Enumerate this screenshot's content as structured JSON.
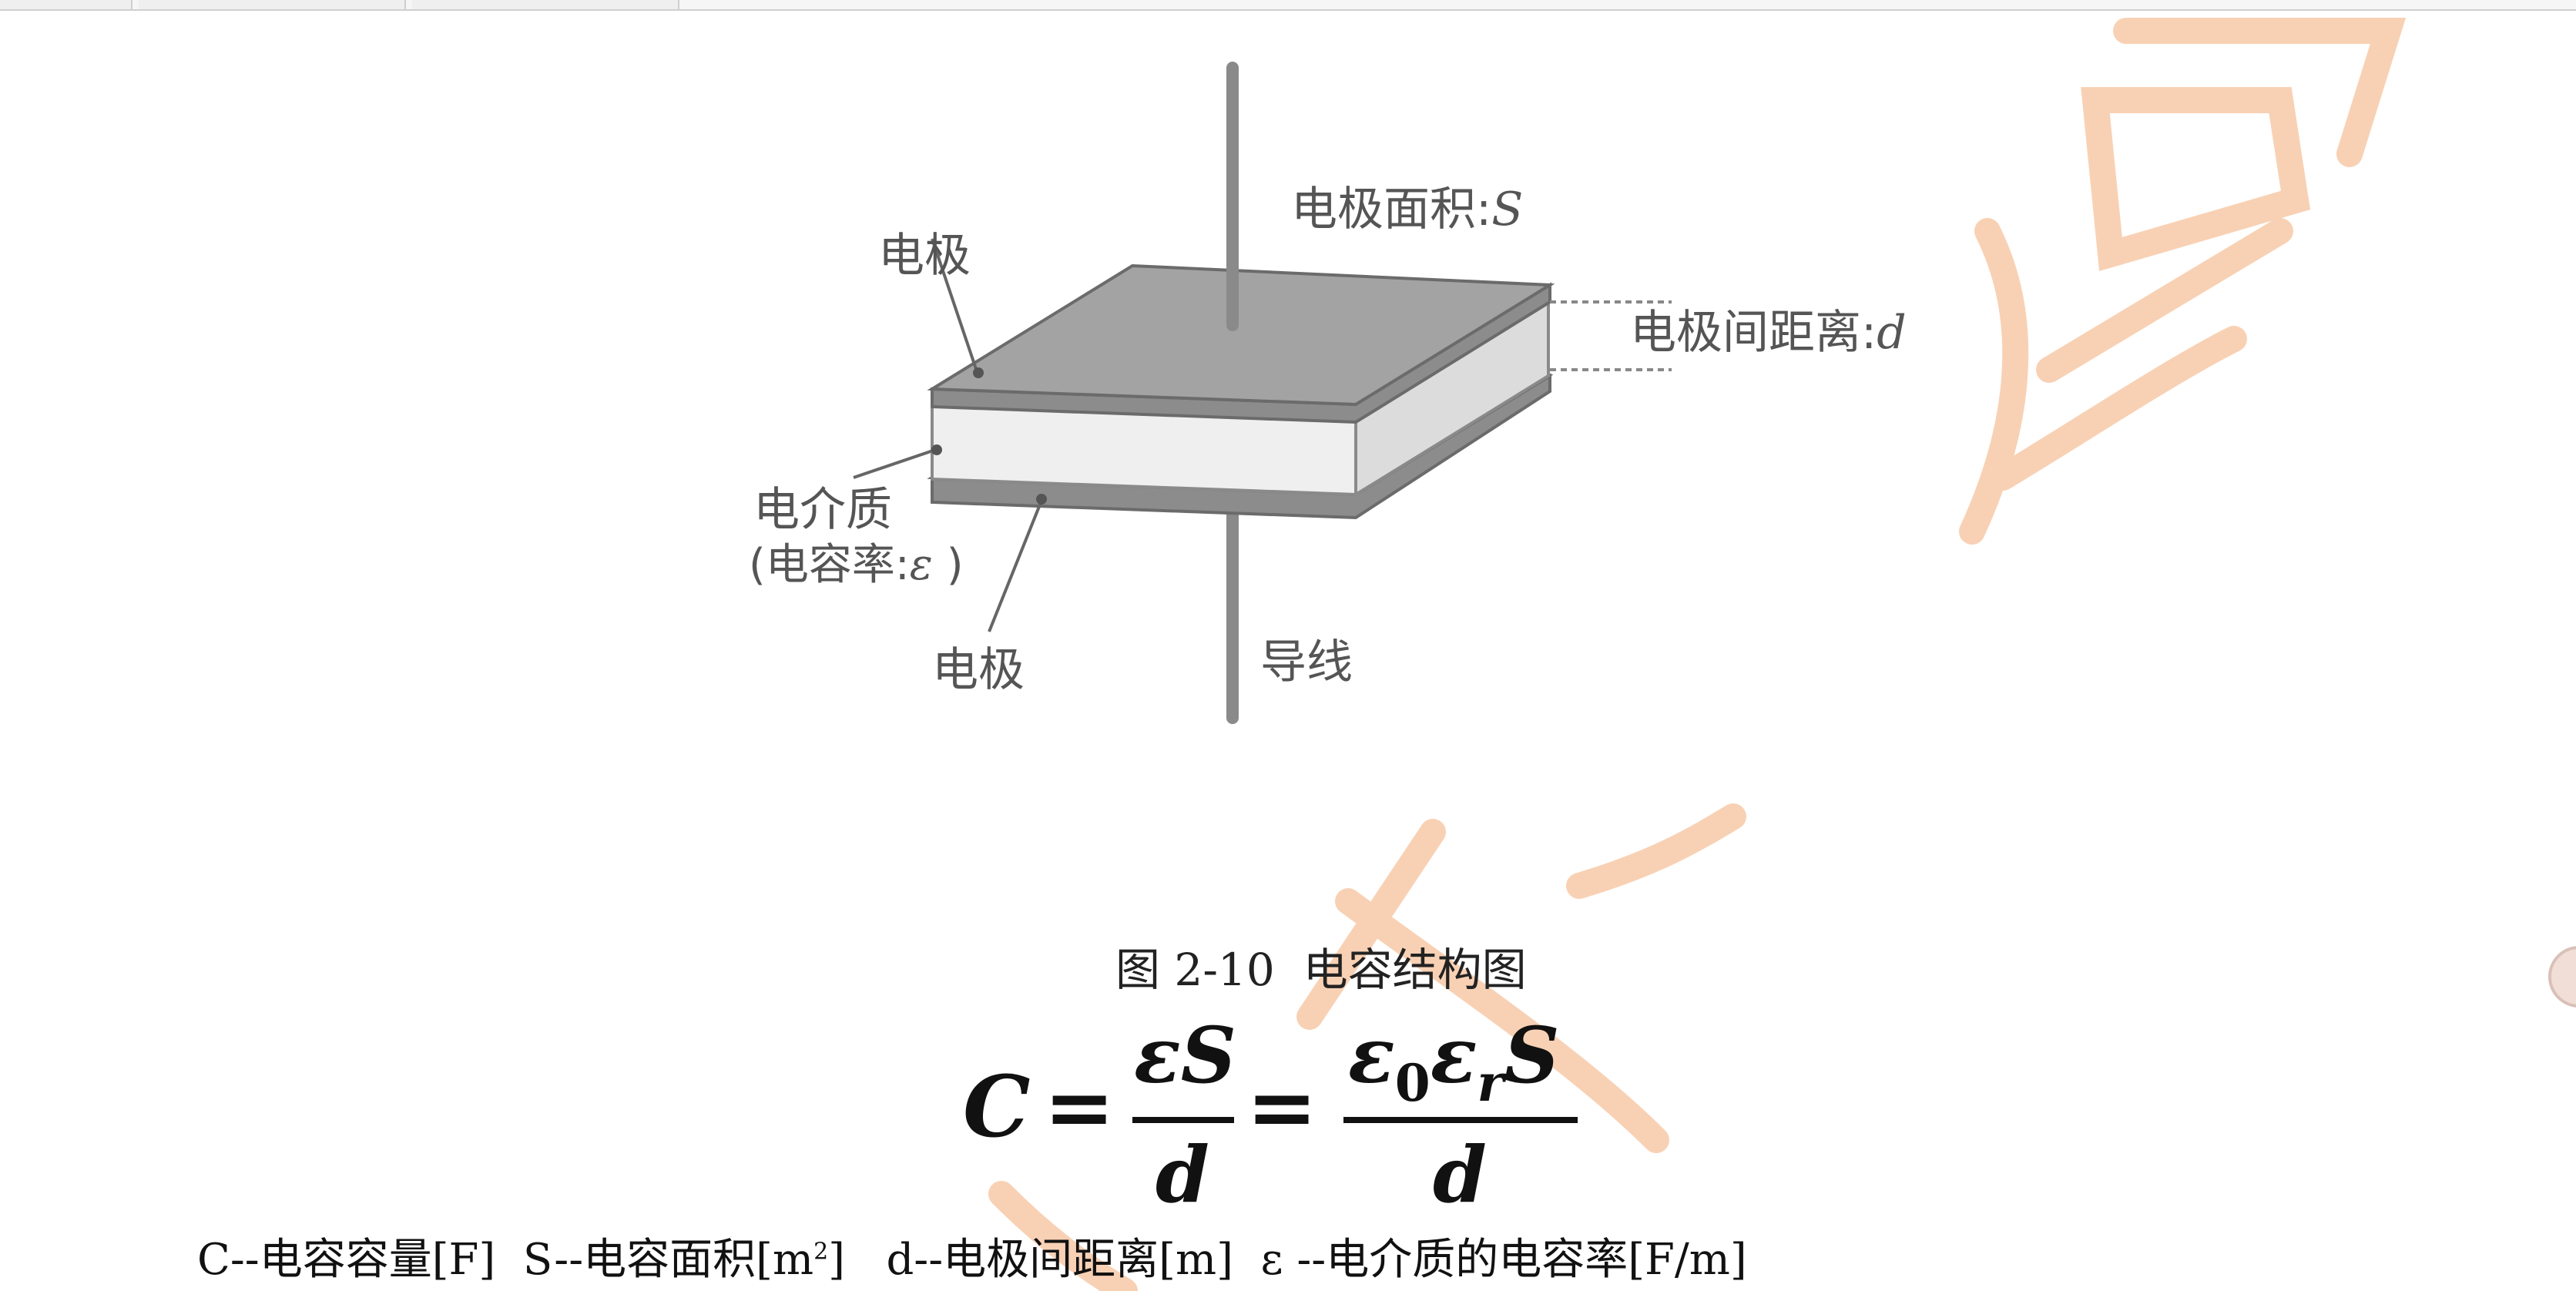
{
  "diagram": {
    "labels": {
      "electrode_area": "电极面积:",
      "electrode_area_symbol": "S",
      "electrode_top": "电极",
      "electrode_gap": "电极间距离:",
      "electrode_gap_symbol": "d",
      "dielectric": "电介质",
      "permittivity_open": "(电容率:",
      "permittivity_symbol": "ε",
      "permittivity_close": ")",
      "electrode_bottom": "电极",
      "wire": "导线"
    },
    "colors": {
      "plate": "#9e9e9e",
      "plate_edge": "#6b6b6b",
      "dielectric": "#ededed",
      "label": "#555555"
    }
  },
  "caption": "图 2-10  电容结构图",
  "formula": {
    "lhs": "C",
    "eq1": "=",
    "frac1_num": "εS",
    "frac1_den": "d",
    "eq2": "=",
    "frac2_num_eps": "ε",
    "frac2_num_sub0": "0",
    "frac2_num_eps2": "ε",
    "frac2_num_subr": "r",
    "frac2_num_S": "S",
    "frac2_den": "d"
  },
  "legend": {
    "c": "C--电容容量[F]",
    "s_main": "S--电容面积[m",
    "s_sup": "2",
    "s_end": "]",
    "d": "d--电极间距离[m]",
    "eps": "ε --电介质的电容率[F/m]"
  },
  "watermark": {
    "color": "#f7c9a8"
  }
}
